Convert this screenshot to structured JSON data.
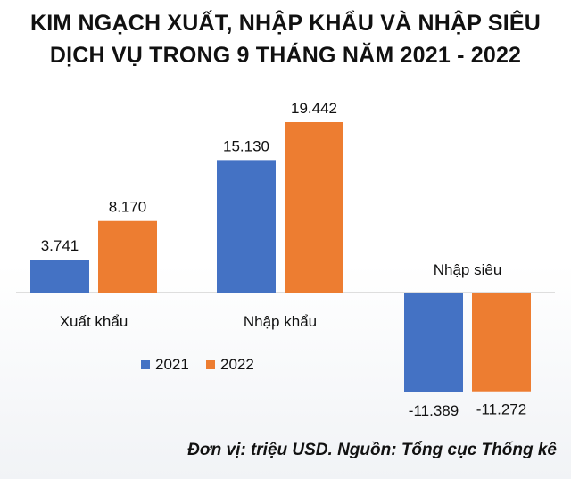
{
  "title_line1": "KIM NGẠCH XUẤT, NHẬP KHẨU VÀ NHẬP SIÊU",
  "title_line2": "DỊCH VỤ TRONG 9 THÁNG NĂM 2021 - 2022",
  "footer": "Đơn vị: triệu USD. Nguồn: Tổng cục Thống kê",
  "colors": {
    "series_2021": "#4472c4",
    "series_2022": "#ed7d31"
  },
  "chart_data": {
    "type": "bar",
    "title": "KIM NGẠCH XUẤT, NHẬP KHẨU VÀ NHẬP SIÊU DỊCH VỤ TRONG 9 THÁNG NĂM 2021 - 2022",
    "categories": [
      "Xuất khẩu",
      "Nhập khẩu",
      "Nhập siêu"
    ],
    "series": [
      {
        "name": "2021",
        "values": [
          3741,
          15130,
          -11389
        ],
        "labels": [
          "3.741",
          "15.130",
          "-11.389"
        ]
      },
      {
        "name": "2022",
        "values": [
          8170,
          19442,
          -11272
        ],
        "labels": [
          "8.170",
          "19.442",
          "-11.272"
        ]
      }
    ],
    "ylim": [
      -12000,
      21000
    ],
    "grid": false,
    "legend": "bottom-center",
    "unit": "triệu USD"
  }
}
